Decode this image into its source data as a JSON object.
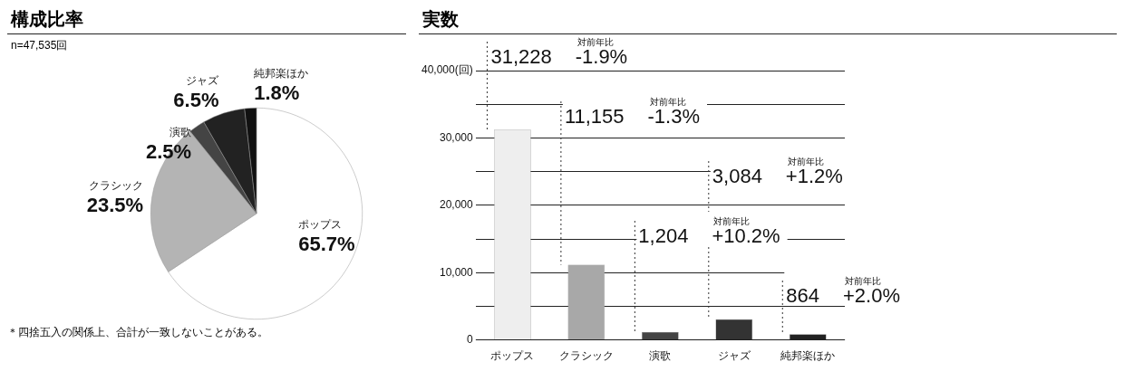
{
  "chart_data": [
    {
      "type": "pie",
      "title": "構成比率",
      "categories": [
        "ポップス",
        "クラシック",
        "演歌",
        "ジャズ",
        "純邦楽ほか"
      ],
      "values": [
        65.7,
        23.5,
        2.5,
        6.5,
        1.8
      ],
      "colors": [
        "#ffffff",
        "#b4b4b4",
        "#444444",
        "#222222",
        "#111111"
      ],
      "value_labels": [
        "65.7%",
        "23.5%",
        "2.5%",
        "6.5%",
        "1.8%"
      ],
      "legend": false,
      "annotations": [
        "n=47,535回",
        "＊四捨五入の関係上、合計が一致しないことがある。"
      ]
    },
    {
      "type": "bar",
      "title": "実数",
      "categories": [
        "ポップス",
        "クラシック",
        "演歌",
        "ジャズ",
        "純邦楽ほか"
      ],
      "values": [
        31228,
        11155,
        1204,
        3084,
        864
      ],
      "colors": [
        "#eeeeee",
        "#a8a8a8",
        "#444444",
        "#333333",
        "#222222"
      ],
      "value_labels": [
        "31,228",
        "11,155",
        "1,204",
        "3,084",
        "864"
      ],
      "ylim": [
        0,
        40000
      ],
      "yticks": [
        {
          "value": 0,
          "label": "0"
        },
        {
          "value": 5000,
          "label": null
        },
        {
          "value": 10000,
          "label": "10,000"
        },
        {
          "value": 15000,
          "label": null
        },
        {
          "value": 20000,
          "label": "20,000"
        },
        {
          "value": 25000,
          "label": null
        },
        {
          "value": 30000,
          "label": "30,000"
        },
        {
          "value": 35000,
          "label": null
        },
        {
          "value": 40000,
          "label": "40,000(回)"
        }
      ],
      "grid": "y",
      "legend": false,
      "annotations": [
        "対前年比 -1.9%",
        "対前年比 -1.3%",
        "対前年比 +10.2%",
        "対前年比 +1.2%",
        "対前年比 +2.0%"
      ]
    }
  ]
}
